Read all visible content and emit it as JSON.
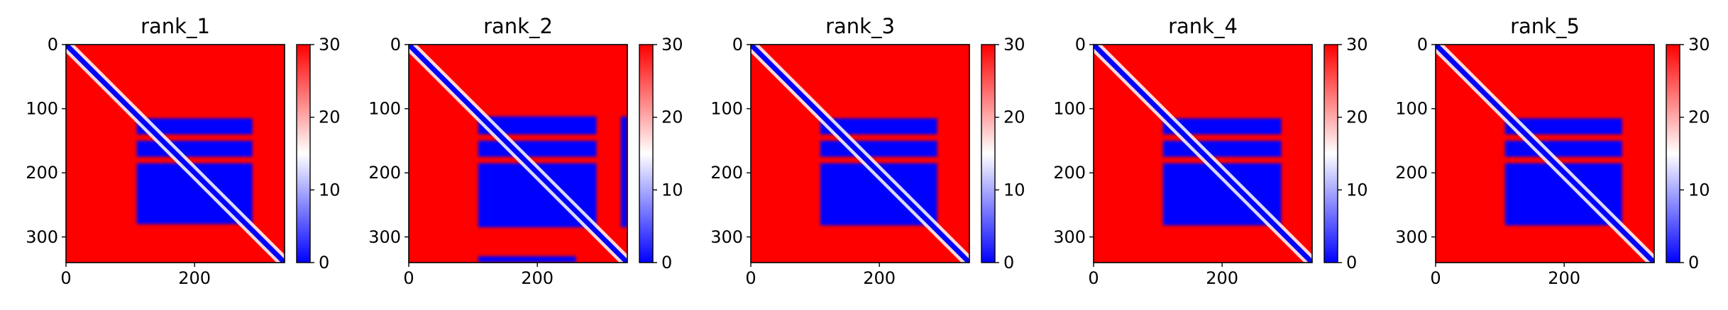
{
  "figure": {
    "background": "#ffffff",
    "colormap": "bwr",
    "colormap_colors": [
      "#0000ff",
      "#ffffff",
      "#ff0000"
    ]
  },
  "chart_data": [
    {
      "type": "heatmap",
      "title": "rank_1",
      "matrix_size": 340,
      "xlim": [
        0,
        340
      ],
      "ylim": [
        340,
        0
      ],
      "x_ticks": [
        0,
        200
      ],
      "y_ticks": [
        0,
        100,
        200,
        300
      ],
      "x_tick_labels": [
        "0",
        "200"
      ],
      "y_tick_labels": [
        "0",
        "100",
        "200",
        "300"
      ],
      "colorbar": {
        "range": [
          0,
          30
        ],
        "ticks": [
          0,
          10,
          20,
          30
        ],
        "tick_labels": [
          "0",
          "10",
          "20",
          "30"
        ]
      },
      "low_error_blocks": [
        {
          "rows": [
            115,
            140
          ],
          "cols": [
            110,
            290
          ]
        },
        {
          "rows": [
            150,
            175
          ],
          "cols": [
            110,
            290
          ]
        },
        {
          "rows": [
            185,
            280
          ],
          "cols": [
            110,
            290
          ]
        }
      ],
      "diagonal_value": 0
    },
    {
      "type": "heatmap",
      "title": "rank_2",
      "matrix_size": 340,
      "xlim": [
        0,
        340
      ],
      "ylim": [
        340,
        0
      ],
      "x_ticks": [
        0,
        200
      ],
      "y_ticks": [
        0,
        100,
        200,
        300
      ],
      "x_tick_labels": [
        "0",
        "200"
      ],
      "y_tick_labels": [
        "0",
        "100",
        "200",
        "300"
      ],
      "colorbar": {
        "range": [
          0,
          30
        ],
        "ticks": [
          0,
          10,
          20,
          30
        ],
        "tick_labels": [
          "0",
          "10",
          "20",
          "30"
        ]
      },
      "low_error_blocks": [
        {
          "rows": [
            112,
            140
          ],
          "cols": [
            108,
            292
          ]
        },
        {
          "rows": [
            150,
            175
          ],
          "cols": [
            108,
            292
          ]
        },
        {
          "rows": [
            185,
            285
          ],
          "cols": [
            108,
            292
          ]
        },
        {
          "rows": [
            112,
            285
          ],
          "cols": [
            330,
            340
          ]
        },
        {
          "rows": [
            330,
            340
          ],
          "cols": [
            108,
            260
          ]
        }
      ],
      "diagonal_value": 0
    },
    {
      "type": "heatmap",
      "title": "rank_3",
      "matrix_size": 340,
      "xlim": [
        0,
        340
      ],
      "ylim": [
        340,
        0
      ],
      "x_ticks": [
        0,
        200
      ],
      "y_ticks": [
        0,
        100,
        200,
        300
      ],
      "x_tick_labels": [
        "0",
        "200"
      ],
      "y_tick_labels": [
        "0",
        "100",
        "200",
        "300"
      ],
      "colorbar": {
        "range": [
          0,
          30
        ],
        "ticks": [
          0,
          10,
          20,
          30
        ],
        "tick_labels": [
          "0",
          "10",
          "20",
          "30"
        ]
      },
      "low_error_blocks": [
        {
          "rows": [
            115,
            140
          ],
          "cols": [
            108,
            290
          ]
        },
        {
          "rows": [
            150,
            175
          ],
          "cols": [
            108,
            290
          ]
        },
        {
          "rows": [
            185,
            282
          ],
          "cols": [
            108,
            290
          ]
        }
      ],
      "diagonal_value": 0
    },
    {
      "type": "heatmap",
      "title": "rank_4",
      "matrix_size": 340,
      "xlim": [
        0,
        340
      ],
      "ylim": [
        340,
        0
      ],
      "x_ticks": [
        0,
        200
      ],
      "y_ticks": [
        0,
        100,
        200,
        300
      ],
      "x_tick_labels": [
        "0",
        "200"
      ],
      "y_tick_labels": [
        "0",
        "100",
        "200",
        "300"
      ],
      "colorbar": {
        "range": [
          0,
          30
        ],
        "ticks": [
          0,
          10,
          20,
          30
        ],
        "tick_labels": [
          "0",
          "10",
          "20",
          "30"
        ]
      },
      "low_error_blocks": [
        {
          "rows": [
            115,
            140
          ],
          "cols": [
            108,
            292
          ]
        },
        {
          "rows": [
            150,
            175
          ],
          "cols": [
            108,
            292
          ]
        },
        {
          "rows": [
            185,
            282
          ],
          "cols": [
            108,
            292
          ]
        }
      ],
      "diagonal_value": 0
    },
    {
      "type": "heatmap",
      "title": "rank_5",
      "matrix_size": 340,
      "xlim": [
        0,
        340
      ],
      "ylim": [
        340,
        0
      ],
      "x_ticks": [
        0,
        200
      ],
      "y_ticks": [
        0,
        100,
        200,
        300
      ],
      "x_tick_labels": [
        "0",
        "200"
      ],
      "y_tick_labels": [
        "0",
        "100",
        "200",
        "300"
      ],
      "colorbar": {
        "range": [
          0,
          30
        ],
        "ticks": [
          0,
          10,
          20,
          30
        ],
        "tick_labels": [
          "0",
          "10",
          "20",
          "30"
        ]
      },
      "low_error_blocks": [
        {
          "rows": [
            115,
            140
          ],
          "cols": [
            108,
            290
          ]
        },
        {
          "rows": [
            150,
            175
          ],
          "cols": [
            108,
            290
          ]
        },
        {
          "rows": [
            185,
            282
          ],
          "cols": [
            108,
            290
          ]
        }
      ],
      "diagonal_value": 0
    }
  ]
}
